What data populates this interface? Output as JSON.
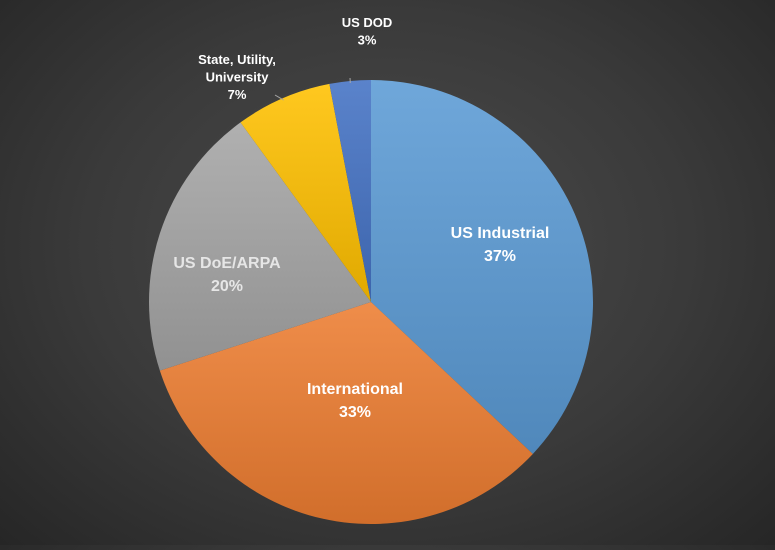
{
  "chart_data": {
    "type": "pie",
    "title": "",
    "start_angle_deg": 0,
    "direction": "clockwise",
    "slices": [
      {
        "label": "US Industrial",
        "value": 37,
        "value_label": "37%",
        "color": "#5b9bd5",
        "label_color": "#ffffff"
      },
      {
        "label": "International",
        "value": 33,
        "value_label": "33%",
        "color": "#ed7d31",
        "label_color": "#ffffff"
      },
      {
        "label": "US DoE/ARPA",
        "value": 20,
        "value_label": "20%",
        "color": "#a5a5a5",
        "label_color": "#ffffff"
      },
      {
        "label": "State, Utility, University",
        "label_lines": [
          "State, Utility,",
          "University"
        ],
        "value": 7,
        "value_label": "7%",
        "color": "#ffc000",
        "label_color": "#ffffff"
      },
      {
        "label": "US DOD",
        "value": 3,
        "value_label": "3%",
        "color": "#4472c4",
        "label_color": "#ffffff"
      }
    ],
    "legend": "none"
  }
}
